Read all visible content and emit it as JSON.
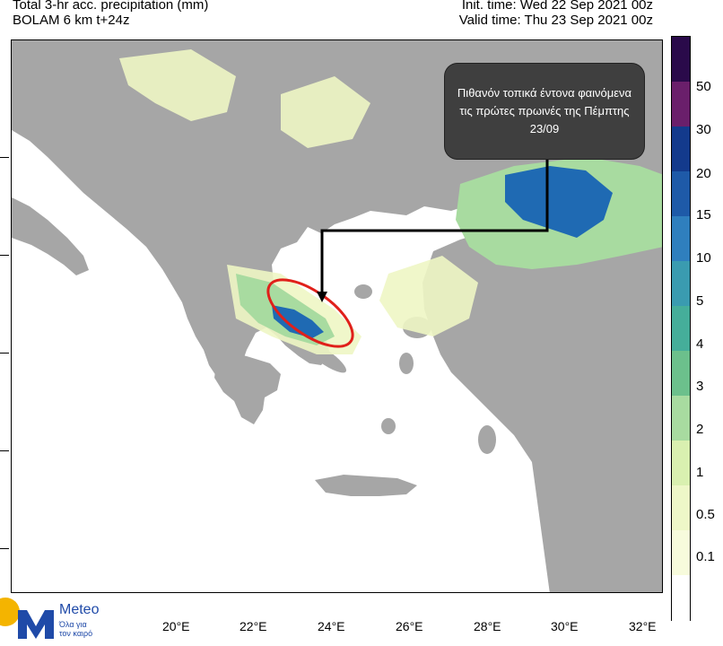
{
  "header": {
    "title_line1": "Total 3-hr acc. precipitation (mm)",
    "title_line2": "BOLAM 6 km t+24z",
    "init_time": "Init. time: Wed 22 Sep 2021 00z",
    "valid_time": "Valid time: Thu 23 Sep 2021 00z"
  },
  "callout": {
    "text": "Πιθανόν τοπικά έντονα φαινόμενα τις πρώτες πρωινές της Πέμπτης 23/09"
  },
  "x_axis": {
    "ticks": [
      "20°E",
      "22°E",
      "24°E",
      "26°E",
      "28°E",
      "30°E",
      "32°E"
    ]
  },
  "colorbar": {
    "labels": [
      "50",
      "30",
      "20",
      "15",
      "10",
      "5",
      "4",
      "3",
      "2",
      "1",
      "0.5",
      "0.1"
    ],
    "colors": [
      "#2a0a4a",
      "#6a1f6b",
      "#133a8c",
      "#1e5aa8",
      "#2f7fbe",
      "#3a9bb0",
      "#45ae9a",
      "#6cc08c",
      "#a8dba0",
      "#d9f0b0",
      "#eef7c8",
      "#f7fbdc",
      "#ffffff"
    ]
  },
  "map_colors": {
    "sea": "#ffffff",
    "land": "#a6a6a6",
    "light_precip": "#eef6c4",
    "medium_precip": "#a8dba0",
    "heavy_precip": "#1f6ab3",
    "highlight_ellipse": "#e0201a"
  },
  "logo": {
    "word": "Meteo",
    "tagline_line1": "Όλα για",
    "tagline_line2": "τον καιρό"
  }
}
